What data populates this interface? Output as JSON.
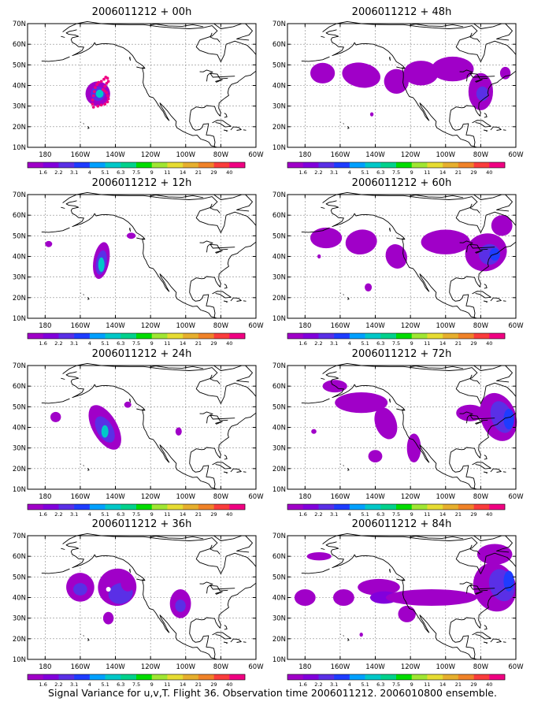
{
  "figure": {
    "caption": "Signal Variance for u,v,T. Flight 36. Observation time 2006011212. 2006010800 ensemble."
  },
  "map_axes": {
    "lat_labels": [
      "10N",
      "20N",
      "30N",
      "40N",
      "50N",
      "60N",
      "70N"
    ],
    "lat_values": [
      10,
      20,
      30,
      40,
      50,
      60,
      70
    ],
    "lon_labels": [
      "180",
      "160W",
      "140W",
      "120W",
      "100W",
      "80W",
      "60W"
    ],
    "lon_values": [
      -180,
      -160,
      -140,
      -120,
      -100,
      -80,
      -60
    ],
    "lon_range": [
      -190,
      -60
    ],
    "lat_range": [
      10,
      70
    ]
  },
  "colorbar": {
    "labels": [
      "1.6",
      "2.2",
      "3.1",
      "4",
      "5.1",
      "6.3",
      "7.5",
      "9",
      "11",
      "14",
      "21",
      "29",
      "40"
    ],
    "colors": [
      "#a000c8",
      "#8200dc",
      "#5a2fe6",
      "#1e3cff",
      "#00a0ff",
      "#00c8c8",
      "#00d28c",
      "#00dc00",
      "#a0e632",
      "#e6dc32",
      "#e6af2d",
      "#f08228",
      "#fa3c3c",
      "#f00082"
    ]
  },
  "panels": [
    {
      "title": "2006011212 + 00h"
    },
    {
      "title": "2006011212 + 48h"
    },
    {
      "title": "2006011212 + 12h"
    },
    {
      "title": "2006011212 + 60h"
    },
    {
      "title": "2006011212 + 24h"
    },
    {
      "title": "2006011212 + 72h"
    },
    {
      "title": "2006011212 + 36h"
    },
    {
      "title": "2006011212 + 84h"
    }
  ],
  "shading_levels": {
    "purple": "#a000c8",
    "violet": "#8200dc",
    "indigo": "#5a2fe6",
    "blue": "#1e3cff",
    "lightblue": "#00a0ff",
    "cyan": "#00c8c8"
  },
  "flight_track_color": "#f00082"
}
